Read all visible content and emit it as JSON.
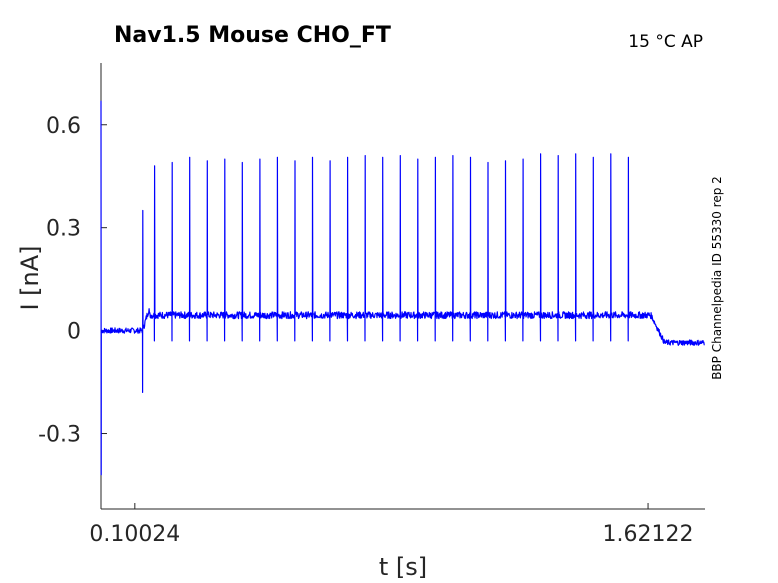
{
  "chart_data": {
    "type": "line",
    "title": "Nav1.5  Mouse  CHO_FT",
    "corner_note": "15 °C  AP",
    "side_note": "BBP Channelpedia ID 55330 rep 2",
    "xlabel": "t [s]",
    "ylabel": "I [nA]",
    "x_ticks": [
      {
        "value": 0.10024,
        "label": "0.10024"
      },
      {
        "value": 1.62122,
        "label": "1.62122"
      }
    ],
    "y_ticks": [
      {
        "value": -0.3,
        "label": "-0.3"
      },
      {
        "value": 0,
        "label": "0"
      },
      {
        "value": 0.3,
        "label": "0.3"
      },
      {
        "value": 0.6,
        "label": "0.6"
      }
    ],
    "xlim": [
      0.0,
      1.79
    ],
    "ylim": [
      -0.52,
      0.78
    ],
    "grid": false,
    "line_color": "#0000ff",
    "series": [
      {
        "baseline_before": 0.0,
        "stim_onset": 0.123,
        "stim_offset": 1.63,
        "baseline_during": 0.045,
        "baseline_after": -0.035,
        "initial_artifact": {
          "t": 0.0,
          "min": -0.42,
          "max": 0.67
        },
        "onset_transient": {
          "t": 0.123,
          "min": -0.18,
          "peak": 0.35
        },
        "spike_times": [
          0.123,
          0.158,
          0.21,
          0.262,
          0.314,
          0.366,
          0.418,
          0.47,
          0.522,
          0.574,
          0.626,
          0.678,
          0.73,
          0.782,
          0.834,
          0.886,
          0.938,
          0.99,
          1.042,
          1.094,
          1.146,
          1.198,
          1.25,
          1.302,
          1.354,
          1.406,
          1.458,
          1.51,
          1.562
        ],
        "spike_peaks": [
          0.35,
          0.48,
          0.49,
          0.505,
          0.495,
          0.5,
          0.49,
          0.5,
          0.505,
          0.495,
          0.505,
          0.495,
          0.505,
          0.51,
          0.505,
          0.51,
          0.5,
          0.505,
          0.51,
          0.505,
          0.49,
          0.495,
          0.5,
          0.515,
          0.51,
          0.515,
          0.505,
          0.515,
          0.505
        ],
        "spike_troughs": -0.03
      }
    ]
  }
}
